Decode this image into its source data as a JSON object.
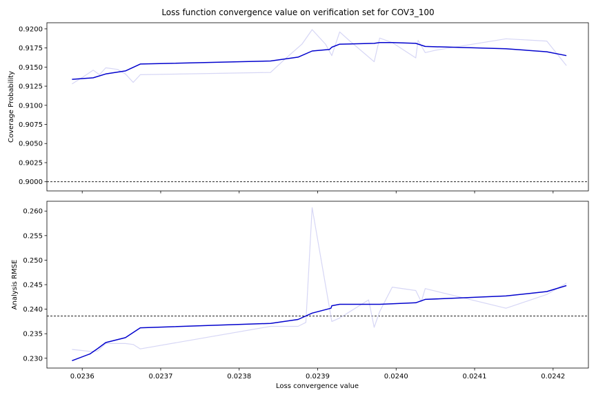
{
  "figure": {
    "title": "Loss function convergence value on verification set for COV3_100"
  },
  "chart_data": [
    {
      "type": "line",
      "panel": "top",
      "title": "Loss function convergence value on verification set for COV3_100",
      "xlabel": "",
      "ylabel": "Coverage Probability",
      "xlim": [
        0.023555,
        0.024245
      ],
      "ylim": [
        0.8988,
        0.9208
      ],
      "yticks": [
        0.9,
        0.9025,
        0.905,
        0.9075,
        0.91,
        0.9125,
        0.915,
        0.9175,
        0.92
      ],
      "ytick_labels": [
        "0.9000",
        "0.9025",
        "0.9050",
        "0.9075",
        "0.9100",
        "0.9125",
        "0.9150",
        "0.9175",
        "0.9200"
      ],
      "xticks": [
        0.0236,
        0.0237,
        0.0238,
        0.0239,
        0.024,
        0.0241,
        0.0242
      ],
      "show_xtick_labels": false,
      "grid": false,
      "reference_line": 0.9,
      "series": [
        {
          "role": "raw",
          "color": "#d6d6f5",
          "x": [
            0.023587,
            0.023601,
            0.023614,
            0.023622,
            0.02363,
            0.023645,
            0.023655,
            0.023665,
            0.023674,
            0.02384,
            0.02386,
            0.02388,
            0.023893,
            0.02391,
            0.023918,
            0.023928,
            0.02394,
            0.023972,
            0.023979,
            0.023995,
            0.024025,
            0.024028,
            0.024037,
            0.02405,
            0.02414,
            0.024192,
            0.024217
          ],
          "y": [
            0.9128,
            0.9137,
            0.9146,
            0.914,
            0.9149,
            0.9147,
            0.9141,
            0.913,
            0.914,
            0.9143,
            0.9162,
            0.918,
            0.9199,
            0.918,
            0.9165,
            0.9196,
            0.9185,
            0.9157,
            0.9188,
            0.9182,
            0.9162,
            0.9185,
            0.9169,
            0.9172,
            0.9187,
            0.9184,
            0.9152
          ]
        },
        {
          "role": "smoothed",
          "color": "#0000cd",
          "x": [
            0.023587,
            0.023614,
            0.02363,
            0.023655,
            0.023674,
            0.02384,
            0.023875,
            0.023893,
            0.023915,
            0.023918,
            0.023928,
            0.023972,
            0.023979,
            0.023995,
            0.024025,
            0.024037,
            0.02414,
            0.024192,
            0.024217
          ],
          "y": [
            0.9134,
            0.9136,
            0.9141,
            0.9145,
            0.9154,
            0.9158,
            0.9163,
            0.9171,
            0.9173,
            0.9176,
            0.918,
            0.9181,
            0.9182,
            0.9182,
            0.9181,
            0.9177,
            0.9174,
            0.917,
            0.9165
          ]
        }
      ]
    },
    {
      "type": "line",
      "panel": "bottom",
      "xlabel": "Loss convergence value",
      "ylabel": "Analysis RMSE",
      "xlim": [
        0.023555,
        0.024245
      ],
      "ylim": [
        0.228,
        0.262
      ],
      "yticks": [
        0.23,
        0.235,
        0.24,
        0.245,
        0.25,
        0.255,
        0.26
      ],
      "ytick_labels": [
        "0.230",
        "0.235",
        "0.240",
        "0.245",
        "0.250",
        "0.255",
        "0.260"
      ],
      "xticks": [
        0.0236,
        0.0237,
        0.0238,
        0.0239,
        0.024,
        0.0241,
        0.0242
      ],
      "xtick_labels": [
        "0.0236",
        "0.0237",
        "0.0238",
        "0.0239",
        "0.0240",
        "0.0241",
        "0.0242"
      ],
      "grid": false,
      "reference_line": 0.2386,
      "series": [
        {
          "role": "raw",
          "color": "#d6d6f5",
          "x": [
            0.023587,
            0.02361,
            0.02362,
            0.02363,
            0.023655,
            0.023665,
            0.023674,
            0.02384,
            0.023875,
            0.023885,
            0.023893,
            0.023918,
            0.023928,
            0.023965,
            0.023972,
            0.023979,
            0.023995,
            0.024025,
            0.024032,
            0.024037,
            0.02414,
            0.024192,
            0.024217
          ],
          "y": [
            0.2318,
            0.2314,
            0.2315,
            0.233,
            0.233,
            0.2328,
            0.2319,
            0.2365,
            0.2365,
            0.2373,
            0.2607,
            0.2375,
            0.2382,
            0.2419,
            0.2363,
            0.2395,
            0.2445,
            0.2438,
            0.2415,
            0.2442,
            0.2402,
            0.243,
            0.2453
          ]
        },
        {
          "role": "smoothed",
          "color": "#0000cd",
          "x": [
            0.023587,
            0.02361,
            0.02362,
            0.02363,
            0.023655,
            0.023674,
            0.02384,
            0.023875,
            0.023893,
            0.023917,
            0.023918,
            0.023928,
            0.023972,
            0.023979,
            0.023995,
            0.024025,
            0.024037,
            0.02414,
            0.024192,
            0.024217
          ],
          "y": [
            0.2295,
            0.2309,
            0.232,
            0.2332,
            0.2342,
            0.2362,
            0.2371,
            0.2379,
            0.2392,
            0.2402,
            0.2407,
            0.241,
            0.241,
            0.241,
            0.2411,
            0.2413,
            0.242,
            0.2427,
            0.2436,
            0.2448
          ]
        }
      ]
    }
  ]
}
